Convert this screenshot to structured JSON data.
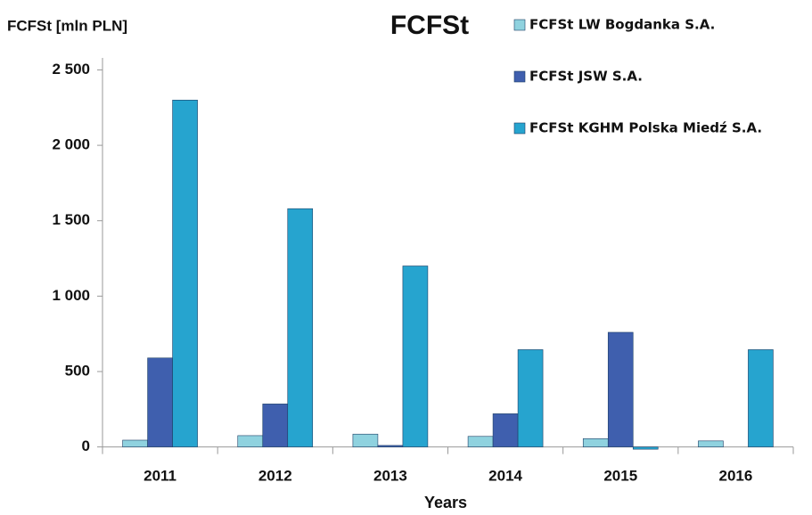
{
  "chart_data": {
    "type": "bar",
    "title": "FCFSt",
    "y_label": "FCFSt [mln PLN]",
    "x_label": "Years",
    "categories": [
      "2011",
      "2012",
      "2013",
      "2014",
      "2015",
      "2016"
    ],
    "series": [
      {
        "name": "FCFSt LW Bogdanka S.A.",
        "color": "#8fd2df",
        "values": [
          45,
          75,
          85,
          70,
          55,
          40
        ]
      },
      {
        "name": "FCFSt JSW S.A.",
        "color": "#3f5fae",
        "values": [
          590,
          285,
          10,
          220,
          760,
          null
        ]
      },
      {
        "name": "FCFSt KGHM Polska Miedź S.A.",
        "color": "#26a4cf",
        "values": [
          2300,
          1580,
          1200,
          645,
          -15,
          645
        ]
      }
    ],
    "ylim": [
      -20,
      2550
    ],
    "yticks": [
      {
        "value": 0,
        "label": "0"
      },
      {
        "value": 500,
        "label": "500"
      },
      {
        "value": 1000,
        "label": "1 000"
      },
      {
        "value": 1500,
        "label": "1 500"
      },
      {
        "value": 2000,
        "label": "2 000"
      },
      {
        "value": 2500,
        "label": "2 500"
      }
    ],
    "legend": "top-right"
  }
}
